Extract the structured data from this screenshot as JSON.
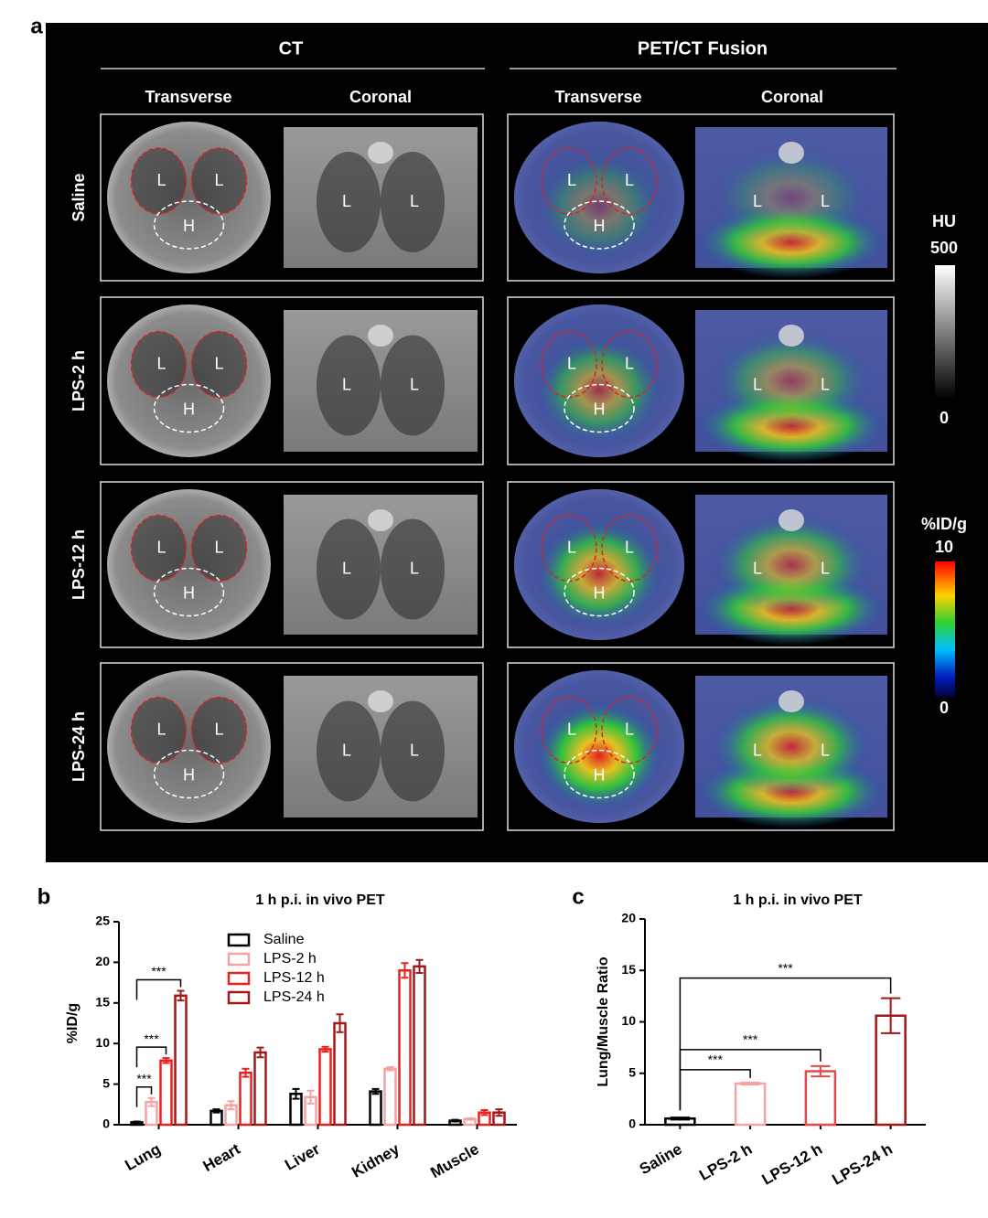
{
  "panel_a": {
    "label": "a",
    "groups": [
      {
        "title": "CT",
        "views": [
          "Transverse",
          "Coronal"
        ]
      },
      {
        "title": "PET/CT Fusion",
        "views": [
          "Transverse",
          "Coronal"
        ]
      }
    ],
    "rows": [
      {
        "name": "Saline",
        "images": [
          [
            "L",
            "L",
            "H"
          ],
          [
            "L",
            "L"
          ],
          [
            "L",
            "L",
            "H"
          ],
          [
            "L",
            "L"
          ]
        ]
      },
      {
        "name": "LPS-2 h",
        "images": [
          [
            "L",
            "L",
            "H"
          ],
          [
            "L",
            "L"
          ],
          [
            "L",
            "L",
            "H"
          ],
          [
            "L",
            "L"
          ]
        ]
      },
      {
        "name": "LPS-12 h",
        "images": [
          [
            "L",
            "L",
            "H"
          ],
          [
            "L",
            "L"
          ],
          [
            "L",
            "L",
            "H"
          ],
          [
            "L",
            "L"
          ]
        ]
      },
      {
        "name": "LPS-24 h",
        "images": [
          [
            "L",
            "L",
            "H"
          ],
          [
            "L",
            "L"
          ],
          [
            "L",
            "L",
            "H"
          ],
          [
            "L",
            "L"
          ]
        ]
      }
    ],
    "colorbars": [
      {
        "title": "HU",
        "max": "500",
        "min": "0"
      },
      {
        "title": "%ID/g",
        "max": "10",
        "min": "0"
      }
    ]
  },
  "chart_data": [
    {
      "type": "bar",
      "panel_label": "b",
      "title": "1 h p.i. in vivo PET",
      "ylabel": "%ID/g",
      "categories": [
        "Lung",
        "Heart",
        "Liver",
        "Kidney",
        "Muscle"
      ],
      "series": [
        {
          "name": "Saline",
          "color": "#000000",
          "values": [
            0.3,
            1.7,
            3.8,
            4.1,
            0.5
          ],
          "errors": [
            0.1,
            0.2,
            0.6,
            0.3,
            0.1
          ]
        },
        {
          "name": "LPS-2 h",
          "color": "#f4a3a3",
          "values": [
            2.8,
            2.4,
            3.4,
            6.9,
            0.7
          ],
          "errors": [
            0.5,
            0.5,
            0.8,
            0.2,
            0.1
          ]
        },
        {
          "name": "LPS-12 h",
          "color": "#e8211f",
          "values": [
            7.9,
            6.4,
            9.3,
            19.0,
            1.5
          ],
          "errors": [
            0.3,
            0.5,
            0.3,
            0.9,
            0.3
          ]
        },
        {
          "name": "LPS-24 h",
          "color": "#a11818",
          "values": [
            15.9,
            8.9,
            12.5,
            19.5,
            1.5
          ],
          "errors": [
            0.6,
            0.6,
            1.1,
            0.8,
            0.4
          ]
        }
      ],
      "annotations": [
        "***",
        "***",
        "***"
      ],
      "ylim": [
        0,
        25
      ],
      "yticks": [
        0,
        5,
        10,
        15,
        20,
        25
      ],
      "legend": "upper center"
    },
    {
      "type": "bar",
      "panel_label": "c",
      "title": "1 h p.i. in vivo PET",
      "ylabel": "Lung/Muscle Ratio",
      "categories": [
        "Saline",
        "LPS-2 h",
        "LPS-12 h",
        "LPS-24 h"
      ],
      "values": [
        0.6,
        4.0,
        5.2,
        10.6
      ],
      "errors": [
        0.1,
        0.1,
        0.5,
        1.7
      ],
      "colors": [
        "#000000",
        "#f4a3a3",
        "#e84848",
        "#a11818"
      ],
      "annotations": [
        "***",
        "***",
        "***"
      ],
      "ylim": [
        0,
        20
      ],
      "yticks": [
        0,
        5,
        10,
        15,
        20
      ]
    }
  ]
}
